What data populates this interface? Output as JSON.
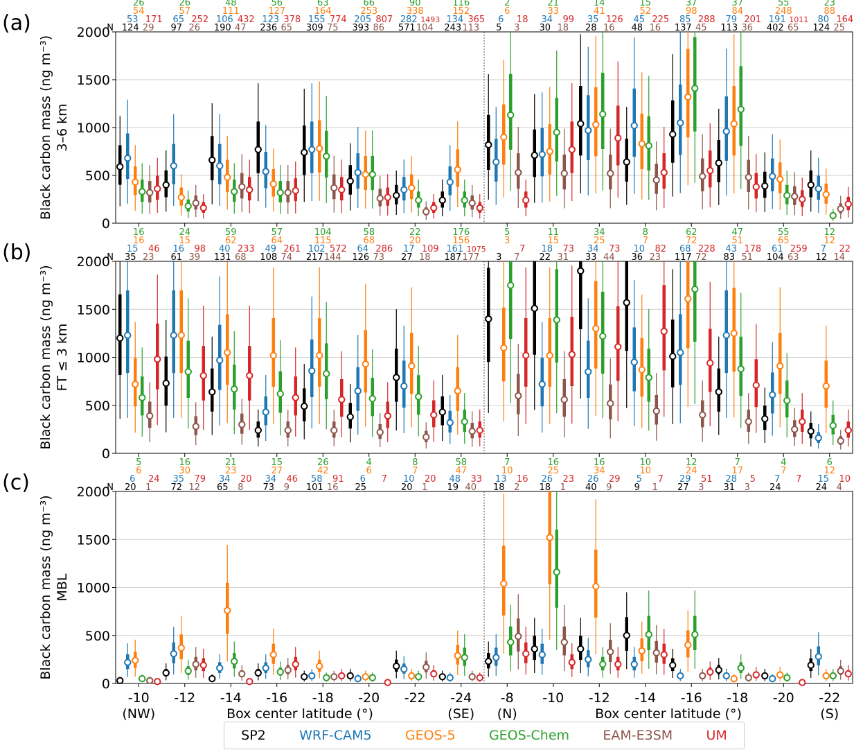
{
  "models": [
    {
      "name": "SP2",
      "color": "#000000"
    },
    {
      "name": "WRF-CAM5",
      "color": "#1f77b4"
    },
    {
      "name": "GEOS-5",
      "color": "#ff7f0e"
    },
    {
      "name": "GEOS-Chem",
      "color": "#2ca02c"
    },
    {
      "name": "EAM-E3SM",
      "color": "#8c564b"
    },
    {
      "name": "UM",
      "color": "#d62728"
    }
  ],
  "chart_data": {
    "type": "box",
    "xlabel": "Box center latitude (°)",
    "ylim": [
      0,
      2000
    ],
    "yticks": [
      0,
      500,
      1000,
      1500,
      2000
    ],
    "ytick_labels": [
      "0",
      "500",
      "1000",
      "1500",
      "2000"
    ],
    "grid": "horizontal",
    "legend": "bottom",
    "count_prefix": "N",
    "xticks": [
      {
        "label": "-10",
        "sub": "(NW)"
      },
      {
        "label": "-12",
        "sub": ""
      },
      {
        "label": "-14",
        "sub": ""
      },
      {
        "label": "-16",
        "sub": ""
      },
      {
        "label": "-18",
        "sub": ""
      },
      {
        "label": "-20",
        "sub": ""
      },
      {
        "label": "-22",
        "sub": ""
      },
      {
        "label": "-24",
        "sub": "(SE)"
      },
      {
        "label": "-8",
        "sub": "(N)"
      },
      {
        "label": "-10",
        "sub": ""
      },
      {
        "label": "-12",
        "sub": ""
      },
      {
        "label": "-14",
        "sub": ""
      },
      {
        "label": "-16",
        "sub": ""
      },
      {
        "label": "-18",
        "sub": ""
      },
      {
        "label": "-20",
        "sub": ""
      },
      {
        "label": "-22",
        "sub": "(S)"
      }
    ],
    "panels": [
      {
        "label": "(a)",
        "ylabel": "Black carbon mass (ng m⁻³)",
        "ylabel2": "3–6 km",
        "counts": [
          [
            "124",
            "53",
            "54",
            "26",
            "29",
            "171"
          ],
          [
            "97",
            "65",
            "57",
            "26",
            "26",
            "252"
          ],
          [
            "190",
            "106",
            "111",
            "48",
            "47",
            "432"
          ],
          [
            "236",
            "123",
            "127",
            "56",
            "65",
            "378"
          ],
          [
            "309",
            "155",
            "164",
            "63",
            "75",
            "774"
          ],
          [
            "393",
            "205",
            "253",
            "66",
            "86",
            "807"
          ],
          [
            "571",
            "282",
            "338",
            "90",
            "104",
            "1493"
          ],
          [
            "243",
            "134",
            "152",
            "116",
            "113",
            "365"
          ],
          [
            "5",
            "6",
            "6",
            "2",
            "3",
            "18"
          ],
          [
            "30",
            "34",
            "33",
            "21",
            "18",
            "99"
          ],
          [
            "28",
            "35",
            "41",
            "14",
            "16",
            "126"
          ],
          [
            "48",
            "45",
            "52",
            "15",
            "16",
            "225"
          ],
          [
            "137",
            "85",
            "98",
            "37",
            "45",
            "288"
          ],
          [
            "113",
            "79",
            "84",
            "37",
            "36",
            "201"
          ],
          [
            "402",
            "191",
            "248",
            "55",
            "65",
            "1011"
          ],
          [
            "124",
            "80",
            "88",
            "23",
            "25",
            "164"
          ]
        ],
        "medians": [
          [
            590,
            680,
            430,
            330,
            320,
            360
          ],
          [
            400,
            600,
            270,
            180,
            210,
            160
          ],
          [
            660,
            600,
            480,
            330,
            380,
            350
          ],
          [
            770,
            540,
            410,
            320,
            320,
            340
          ],
          [
            740,
            770,
            780,
            700,
            370,
            350
          ],
          [
            440,
            530,
            510,
            510,
            260,
            270
          ],
          [
            290,
            350,
            370,
            240,
            120,
            160
          ],
          [
            240,
            430,
            560,
            240,
            210,
            160
          ],
          [
            820,
            640,
            900,
            1130,
            530,
            240
          ],
          [
            710,
            720,
            750,
            950,
            520,
            770
          ],
          [
            1040,
            970,
            1030,
            1140,
            520,
            890
          ],
          [
            640,
            1020,
            830,
            810,
            450,
            530
          ],
          [
            930,
            1050,
            1320,
            1410,
            490,
            550
          ],
          [
            630,
            960,
            1040,
            1190,
            480,
            380
          ],
          [
            390,
            490,
            460,
            290,
            280,
            250
          ],
          [
            400,
            360,
            300,
            80,
            150,
            200
          ]
        ]
      },
      {
        "label": "(b)",
        "ylabel": "Black carbon mass (ng m⁻³)",
        "ylabel2": "FT ≤ 3 km",
        "counts": [
          [
            "35",
            "15",
            "16",
            "16",
            "23",
            "46"
          ],
          [
            "61",
            "16",
            "15",
            "24",
            "39",
            "98"
          ],
          [
            "131",
            "40",
            "62",
            "59",
            "68",
            "233"
          ],
          [
            "108",
            "49",
            "64",
            "57",
            "74",
            "261"
          ],
          [
            "217",
            "102",
            "115",
            "104",
            "144",
            "572"
          ],
          [
            "126",
            "64",
            "68",
            "58",
            "73",
            "286"
          ],
          [
            "27",
            "17",
            "20",
            "22",
            "18",
            "109"
          ],
          [
            "187",
            "161",
            "156",
            "176",
            "177",
            "1075"
          ],
          [
            "3",
            "",
            "3",
            "5",
            "7",
            "7"
          ],
          [
            "22",
            "18",
            "15",
            "11",
            "31",
            "73"
          ],
          [
            "33",
            "34",
            "25",
            "34",
            "44",
            "73"
          ],
          [
            "36",
            "10",
            "7",
            "8",
            "23",
            "82"
          ],
          [
            "117",
            "68",
            "72",
            "62",
            "72",
            "228"
          ],
          [
            "83",
            "43",
            "51",
            "47",
            "51",
            "178"
          ],
          [
            "104",
            "61",
            "65",
            "55",
            "63",
            "259"
          ],
          [
            "12",
            "7",
            "12",
            "12",
            "14",
            "22"
          ]
        ],
        "medians": [
          [
            1200,
            1230,
            720,
            580,
            390,
            980
          ],
          [
            730,
            1230,
            1230,
            850,
            280,
            810
          ],
          [
            640,
            970,
            1050,
            670,
            300,
            810
          ],
          [
            240,
            430,
            1020,
            620,
            240,
            580
          ],
          [
            490,
            860,
            1020,
            830,
            240,
            560
          ],
          [
            380,
            650,
            930,
            570,
            220,
            390
          ],
          [
            790,
            700,
            910,
            590,
            170,
            400
          ],
          [
            430,
            320,
            650,
            330,
            230,
            240
          ],
          [
            1400,
            "",
            1100,
            1750,
            600,
            1020
          ],
          [
            1510,
            720,
            1020,
            1390,
            560,
            1030
          ],
          [
            1900,
            850,
            1300,
            1220,
            520,
            1110
          ],
          [
            1570,
            950,
            870,
            790,
            440,
            1270
          ],
          [
            1010,
            1050,
            1610,
            1710,
            400,
            940
          ],
          [
            640,
            1230,
            1250,
            880,
            330,
            710
          ],
          [
            360,
            610,
            910,
            550,
            250,
            330
          ],
          [
            230,
            160,
            700,
            290,
            130,
            240
          ]
        ]
      },
      {
        "label": "(c)",
        "ylabel": "Black carbon mass (ng m⁻³)",
        "ylabel2": "MBL",
        "counts": [
          [
            "20",
            "6",
            "6",
            "5",
            "1",
            "24"
          ],
          [
            "72",
            "35",
            "30",
            "16",
            "12",
            "79"
          ],
          [
            "65",
            "34",
            "23",
            "21",
            "8",
            "20"
          ],
          [
            "73",
            "34",
            "27",
            "15",
            "9",
            "46"
          ],
          [
            "101",
            "58",
            "42",
            "26",
            "16",
            "91"
          ],
          [
            "25",
            "6",
            "6",
            "4",
            "",
            "7"
          ],
          [
            "20",
            "10",
            "7",
            "8",
            "1",
            "20"
          ],
          [
            "19",
            "48",
            "47",
            "58",
            "40",
            "33"
          ],
          [
            "18",
            "13",
            "10",
            "7",
            "2",
            "16"
          ],
          [
            "18",
            "26",
            "25",
            "16",
            "1",
            "23"
          ],
          [
            "40",
            "26",
            "34",
            "16",
            "9",
            "29"
          ],
          [
            "9",
            "5",
            "10",
            "10",
            "1",
            "7"
          ],
          [
            "27",
            "29",
            "24",
            "12",
            "3",
            "51"
          ],
          [
            "31",
            "28",
            "17",
            "7",
            "3",
            "5"
          ],
          [
            "24",
            "7",
            "7",
            "4",
            "",
            "7"
          ],
          [
            "24",
            "15",
            "12",
            "6",
            "4",
            "10"
          ]
        ],
        "medians": [
          [
            30,
            220,
            240,
            50,
            30,
            20
          ],
          [
            110,
            310,
            370,
            130,
            200,
            190
          ],
          [
            50,
            160,
            760,
            230,
            100,
            20
          ],
          [
            110,
            160,
            300,
            120,
            140,
            200
          ],
          [
            70,
            80,
            180,
            60,
            70,
            80
          ],
          [
            80,
            50,
            70,
            60,
            "",
            10
          ],
          [
            180,
            150,
            80,
            70,
            170,
            100
          ],
          [
            70,
            60,
            290,
            270,
            70,
            60
          ],
          [
            230,
            270,
            1040,
            430,
            490,
            310
          ],
          [
            360,
            300,
            1520,
            1160,
            430,
            220
          ],
          [
            360,
            250,
            1010,
            200,
            330,
            200
          ],
          [
            500,
            200,
            340,
            510,
            320,
            300
          ],
          [
            190,
            80,
            400,
            510,
            80,
            120
          ],
          [
            140,
            80,
            50,
            160,
            60,
            90
          ],
          [
            80,
            50,
            90,
            60,
            "",
            10
          ],
          [
            190,
            280,
            80,
            80,
            130,
            100
          ]
        ]
      }
    ]
  }
}
